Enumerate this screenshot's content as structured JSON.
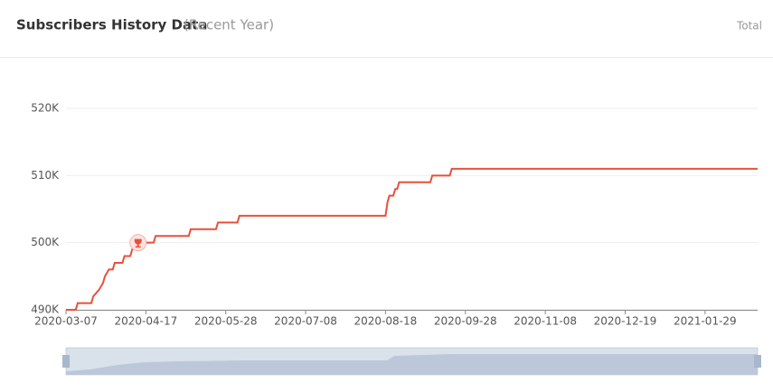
{
  "chart_data": {
    "type": "line",
    "title": "Subscribers History Data",
    "subtitle": "(Recent Year)",
    "toggle": "Total",
    "x": [
      "2020-03-07",
      "2020-03-12",
      "2020-03-13",
      "2020-03-20",
      "2020-03-21",
      "2020-03-24",
      "2020-03-26",
      "2020-03-27",
      "2020-03-29",
      "2020-03-31",
      "2020-04-01",
      "2020-04-05",
      "2020-04-06",
      "2020-04-09",
      "2020-04-10",
      "2020-04-13",
      "2020-04-21",
      "2020-04-22",
      "2020-05-09",
      "2020-05-10",
      "2020-05-23",
      "2020-05-24",
      "2020-06-03",
      "2020-06-04",
      "2020-08-18",
      "2020-08-19",
      "2020-08-20",
      "2020-08-22",
      "2020-08-23",
      "2020-08-24",
      "2020-08-25",
      "2020-09-10",
      "2020-09-11",
      "2020-09-20",
      "2020-09-21",
      "2021-02-25"
    ],
    "series": [
      {
        "color": "#e8503a",
        "values": [
          490000,
          490000,
          491000,
          491000,
          492000,
          493000,
          494000,
          495000,
          496000,
          496000,
          497000,
          497000,
          498000,
          498000,
          499000,
          500000,
          500000,
          501000,
          501000,
          502000,
          502000,
          503000,
          503000,
          504000,
          504000,
          506000,
          507000,
          507000,
          508000,
          508000,
          509000,
          509000,
          510000,
          510000,
          511000,
          511000
        ]
      }
    ],
    "xlim": [
      "2020-03-07",
      "2021-02-25"
    ],
    "xticks": [
      "2020-03-07",
      "2020-04-17",
      "2020-05-28",
      "2020-07-08",
      "2020-08-18",
      "2020-09-28",
      "2020-11-08",
      "2020-12-19",
      "2021-01-29"
    ],
    "ylim": [
      490000,
      520000
    ],
    "yticks": [
      {
        "value": 490000,
        "label": "490K"
      },
      {
        "value": 500000,
        "label": "500K"
      },
      {
        "value": 510000,
        "label": "510K"
      },
      {
        "value": 520000,
        "label": "520K"
      }
    ],
    "grid": true
  }
}
